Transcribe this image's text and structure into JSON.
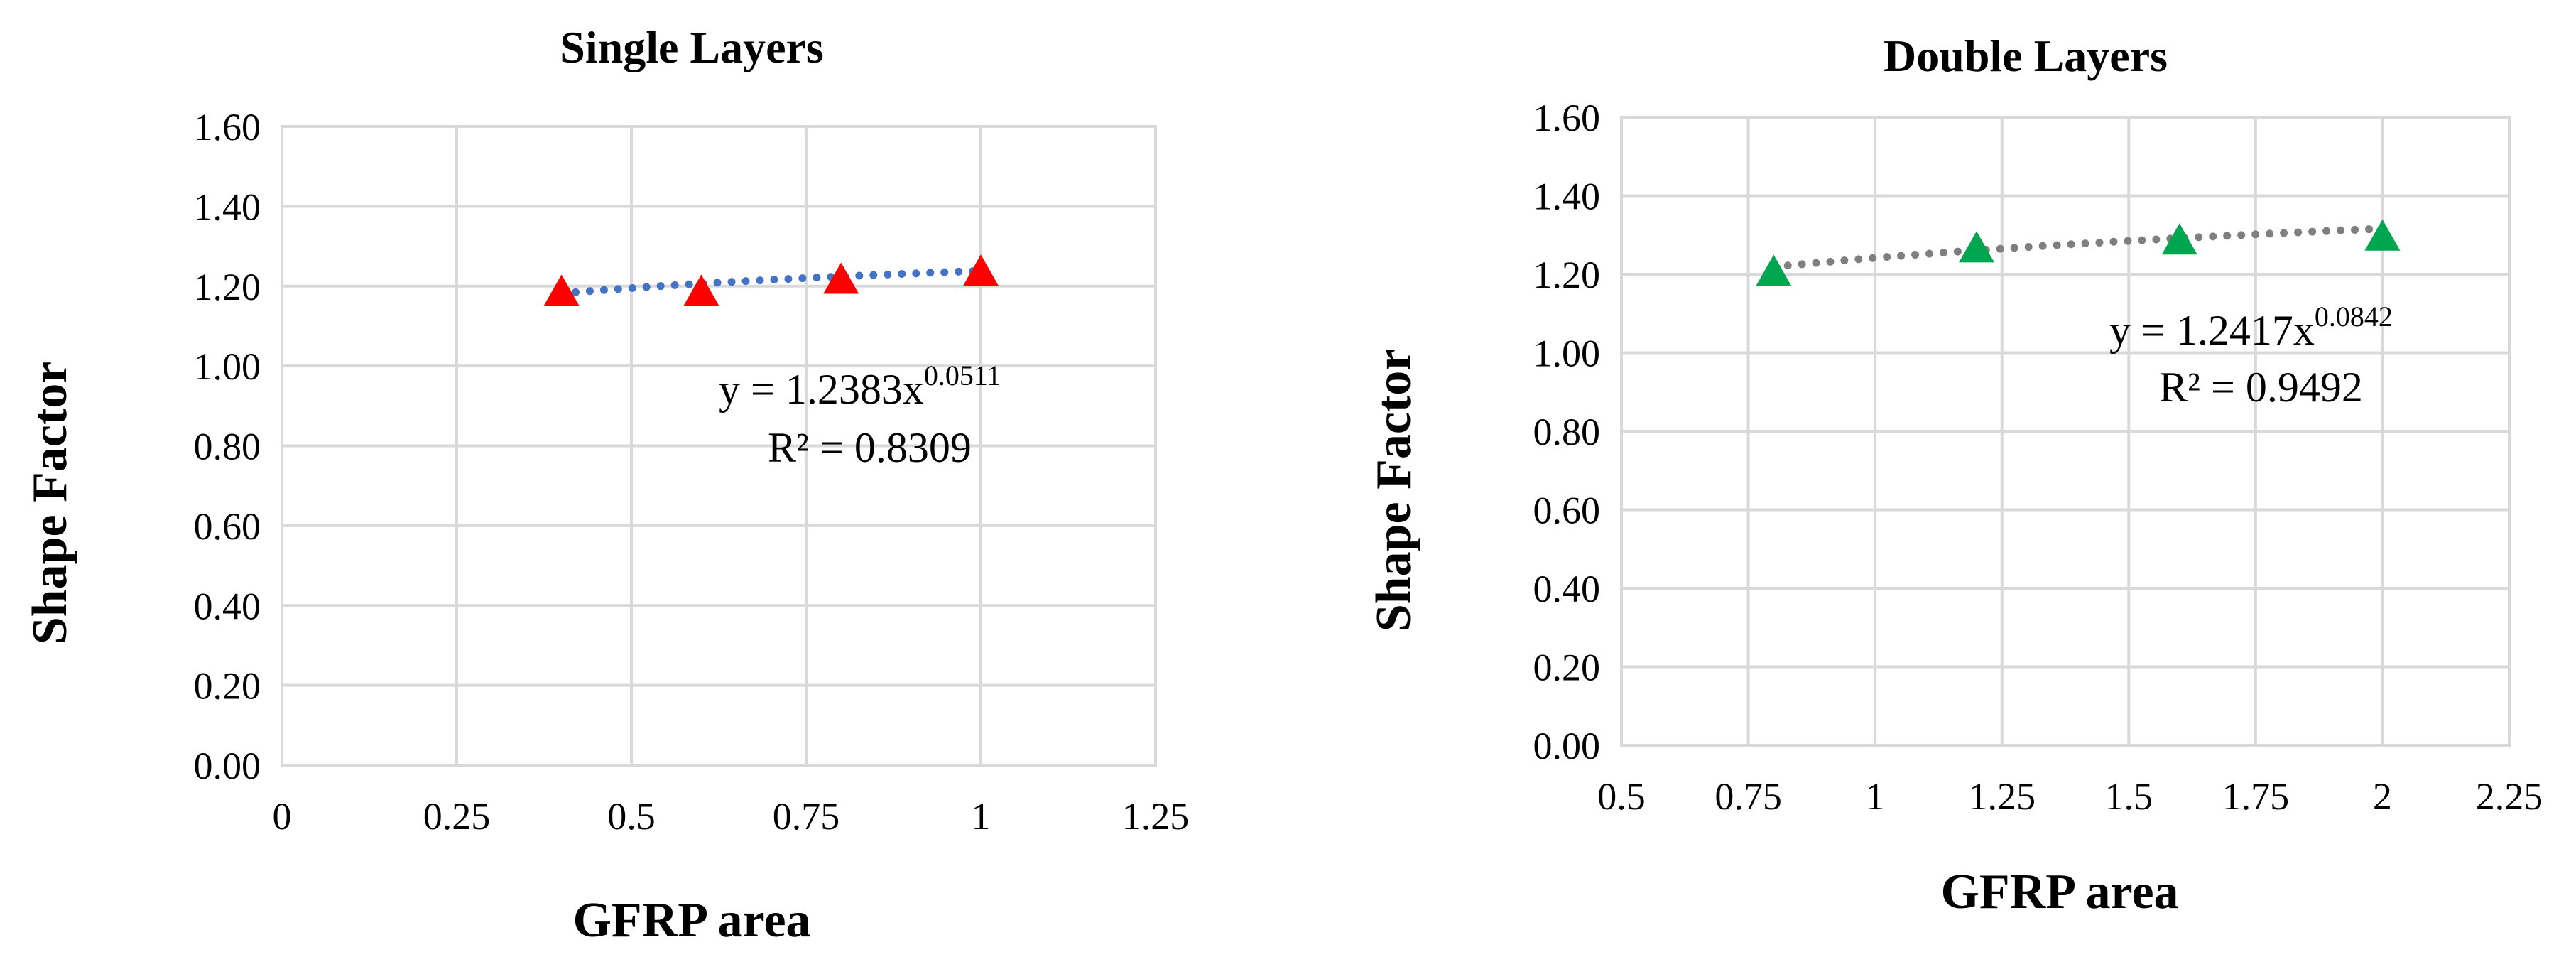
{
  "chart_data": [
    {
      "type": "scatter",
      "title": "Single Layers",
      "xlabel": "GFRP area",
      "ylabel": "Shape Factor",
      "xlim": [
        0,
        1.25
      ],
      "ylim": [
        0,
        1.6
      ],
      "x_ticks": [
        "0",
        "0.25",
        "0.5",
        "0.75",
        "1",
        "1.25"
      ],
      "y_ticks": [
        "0.00",
        "0.20",
        "0.40",
        "0.60",
        "0.80",
        "1.00",
        "1.20",
        "1.40",
        "1.60"
      ],
      "grid": true,
      "series": [
        {
          "x": [
            0.4,
            0.6,
            0.8,
            1.0
          ],
          "y": [
            1.19,
            1.19,
            1.22,
            1.24
          ],
          "marker": "triangle",
          "color": "#ff0000"
        }
      ],
      "trendline": {
        "kind": "power",
        "a": 1.2383,
        "b": 0.0511,
        "color": "#4472c4",
        "style": "dotted"
      },
      "equation": {
        "prefix": "y = 1.2383x",
        "exponent": "0.0511",
        "r2": "R² = 0.8309"
      }
    },
    {
      "type": "scatter",
      "title": "Double Layers",
      "xlabel": "GFRP area",
      "ylabel": "Shape Factor",
      "xlim": [
        0.5,
        2.25
      ],
      "ylim": [
        0,
        1.6
      ],
      "x_ticks": [
        "0.5",
        "0.75",
        "1",
        "1.25",
        "1.5",
        "1.75",
        "2",
        "2.25"
      ],
      "y_ticks": [
        "0.00",
        "0.20",
        "0.40",
        "0.60",
        "0.80",
        "1.00",
        "1.20",
        "1.40",
        "1.60"
      ],
      "grid": true,
      "series": [
        {
          "x": [
            0.8,
            1.2,
            1.6,
            2.0
          ],
          "y": [
            1.21,
            1.27,
            1.29,
            1.3
          ],
          "marker": "triangle",
          "color": "#00a550"
        }
      ],
      "trendline": {
        "kind": "power",
        "a": 1.2417,
        "b": 0.0842,
        "color": "#7f7f7f",
        "style": "dotted"
      },
      "equation": {
        "prefix": "y = 1.2417x",
        "exponent": "0.0842",
        "r2": "R² = 0.9492"
      }
    }
  ]
}
